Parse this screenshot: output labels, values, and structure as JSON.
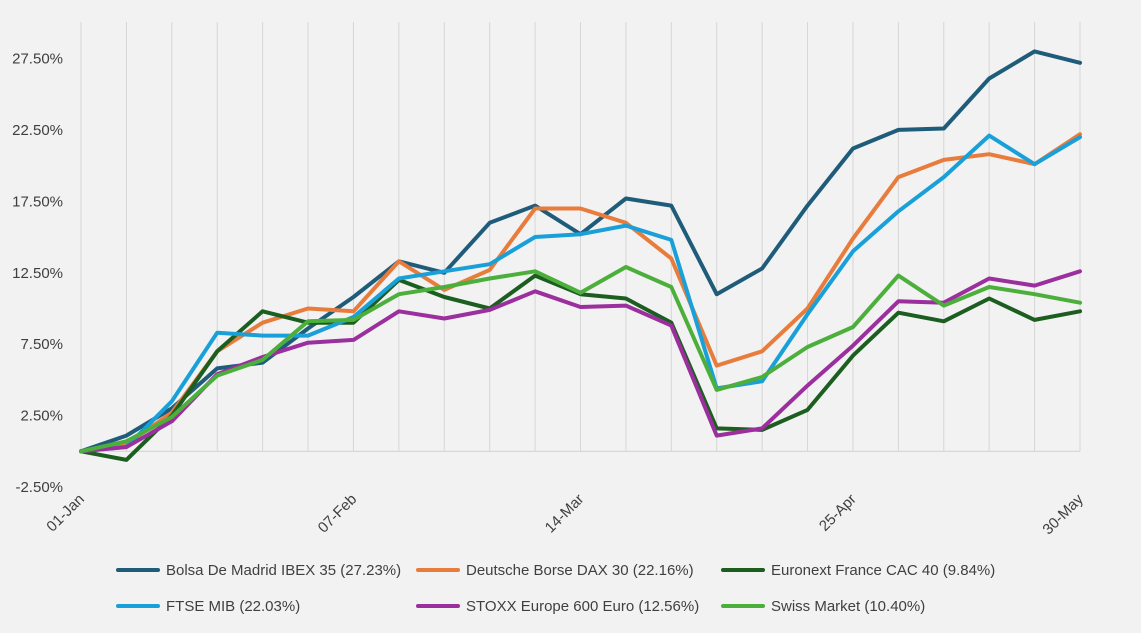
{
  "chart_data": {
    "type": "line",
    "title": "",
    "xlabel": "",
    "ylabel": "",
    "y_ticks": [
      "-2.50%",
      "2.50%",
      "7.50%",
      "12.50%",
      "17.50%",
      "22.50%",
      "27.50%"
    ],
    "ylim": [
      -2.5,
      30
    ],
    "x_tick_labels": [
      {
        "index": 0,
        "label": "01-Jan"
      },
      {
        "index": 6,
        "label": "07-Feb"
      },
      {
        "index": 11,
        "label": "14-Mar"
      },
      {
        "index": 17,
        "label": "25-Apr"
      },
      {
        "index": 22,
        "label": "30-May"
      }
    ],
    "grid": "vertical",
    "legend_position": "bottom",
    "point_count": 23,
    "series": [
      {
        "name": "Bolsa De Madrid IBEX 35 (27.23%)",
        "color": "#1f5c7a",
        "values": [
          0,
          1.1,
          3,
          5.8,
          6.2,
          8.6,
          10.8,
          13.3,
          12.5,
          16,
          17.2,
          15.2,
          17.7,
          17.2,
          11,
          12.8,
          17.2,
          21.2,
          22.5,
          22.6,
          26.1,
          28,
          27.2
        ]
      },
      {
        "name": "Deutsche Borse DAX 30 (22.16%)",
        "color": "#e87c3c",
        "values": [
          0,
          0.5,
          2.7,
          7,
          9,
          10,
          9.8,
          13.3,
          11.3,
          12.7,
          17,
          17,
          16,
          13.5,
          6,
          7,
          10,
          14.9,
          19.2,
          20.4,
          20.8,
          20.1,
          22.2
        ]
      },
      {
        "name": "Euronext France CAC 40 (9.84%)",
        "color": "#1b5e20",
        "values": [
          0,
          -0.6,
          2.5,
          7,
          9.8,
          9,
          9,
          12,
          10.8,
          10,
          12.3,
          11,
          10.7,
          9,
          1.6,
          1.5,
          2.9,
          6.7,
          9.7,
          9.1,
          10.7,
          9.2,
          9.8
        ]
      },
      {
        "name": "FTSE MIB (22.03%)",
        "color": "#1aa0d8",
        "values": [
          0,
          0.3,
          3.5,
          8.3,
          8.1,
          8.1,
          9.4,
          12.1,
          12.6,
          13.1,
          15,
          15.2,
          15.8,
          14.8,
          4.4,
          4.9,
          9.6,
          14,
          16.8,
          19.2,
          22.1,
          20.1,
          22
        ]
      },
      {
        "name": "STOXX Europe 600 Euro (12.56%)",
        "color": "#9b2f9e",
        "values": [
          0,
          0.3,
          2.1,
          5.4,
          6.6,
          7.6,
          7.8,
          9.8,
          9.3,
          9.9,
          11.2,
          10.1,
          10.2,
          8.8,
          1.1,
          1.6,
          4.6,
          7.4,
          10.5,
          10.4,
          12.1,
          11.6,
          12.6
        ]
      },
      {
        "name": "Swiss Market (10.40%)",
        "color": "#4caf3c",
        "values": [
          0,
          0.7,
          2.4,
          5.3,
          6.4,
          9.1,
          9.2,
          11,
          11.5,
          12.1,
          12.6,
          11.1,
          12.9,
          11.5,
          4.3,
          5.2,
          7.3,
          8.7,
          12.3,
          10.2,
          11.5,
          11,
          10.4
        ]
      }
    ]
  }
}
